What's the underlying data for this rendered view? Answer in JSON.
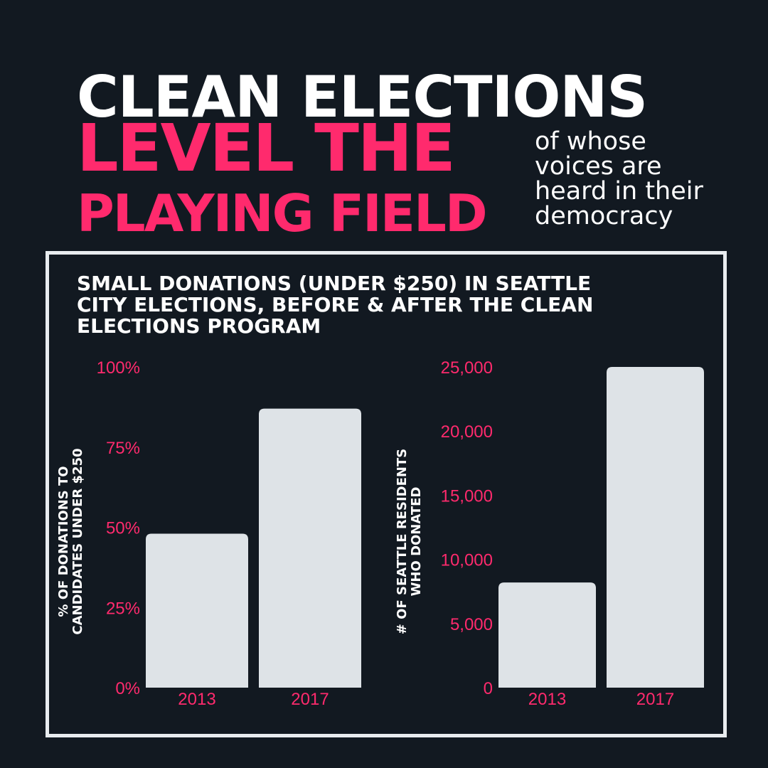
{
  "headline": {
    "line1": "CLEAN ELECTIONS",
    "line2": "LEVEL THE",
    "line3": "PLAYING FIELD",
    "note_lines": [
      "of whose",
      "voices are",
      "heard in their",
      "democracy"
    ]
  },
  "colors": {
    "background": "#121921",
    "accent": "#ff2a6d",
    "bar": "#dee3e7",
    "text": "#ffffff"
  },
  "chart_title_lines": [
    "SMALL DONATIONS (UNDER $250) IN SEATTLE",
    "CITY ELECTIONS, BEFORE & AFTER THE CLEAN",
    "ELECTIONS PROGRAM"
  ],
  "chart_data": [
    {
      "type": "bar",
      "categories": [
        "2013",
        "2017"
      ],
      "values": [
        48,
        87
      ],
      "ylabel_lines": [
        "% OF DONATIONS TO",
        "CANDIDATES UNDER $250"
      ],
      "ylim": [
        0,
        100
      ],
      "yticks": [
        0,
        25,
        50,
        75,
        100
      ],
      "ytick_labels": [
        "0%",
        "25%",
        "50%",
        "75%",
        "100%"
      ],
      "grid": false
    },
    {
      "type": "bar",
      "categories": [
        "2013",
        "2017"
      ],
      "values": [
        8200,
        25000
      ],
      "ylabel_lines": [
        "# OF SEATTLE RESIDENTS",
        "WHO DONATED"
      ],
      "ylim": [
        0,
        25000
      ],
      "yticks": [
        0,
        5000,
        10000,
        15000,
        20000,
        25000
      ],
      "ytick_labels": [
        "0",
        "5,000",
        "10,000",
        "15,000",
        "20,000",
        "25,000"
      ],
      "grid": false
    }
  ]
}
